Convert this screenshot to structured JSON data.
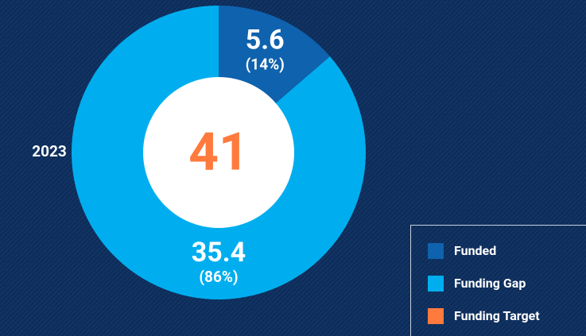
{
  "chart_data": {
    "type": "donut",
    "label": "2023",
    "categories": [
      "Funded",
      "Funding Gap"
    ],
    "values": [
      5.6,
      35.4
    ],
    "shares": [
      14,
      86
    ],
    "share_labels": [
      "(14%)",
      "(86%)"
    ],
    "colors": [
      "#0f62ad",
      "#00aeef"
    ],
    "total": 41,
    "total_name": "Funding Target",
    "total_color": "#ff7a3d",
    "legend": "bottom-right"
  }
}
